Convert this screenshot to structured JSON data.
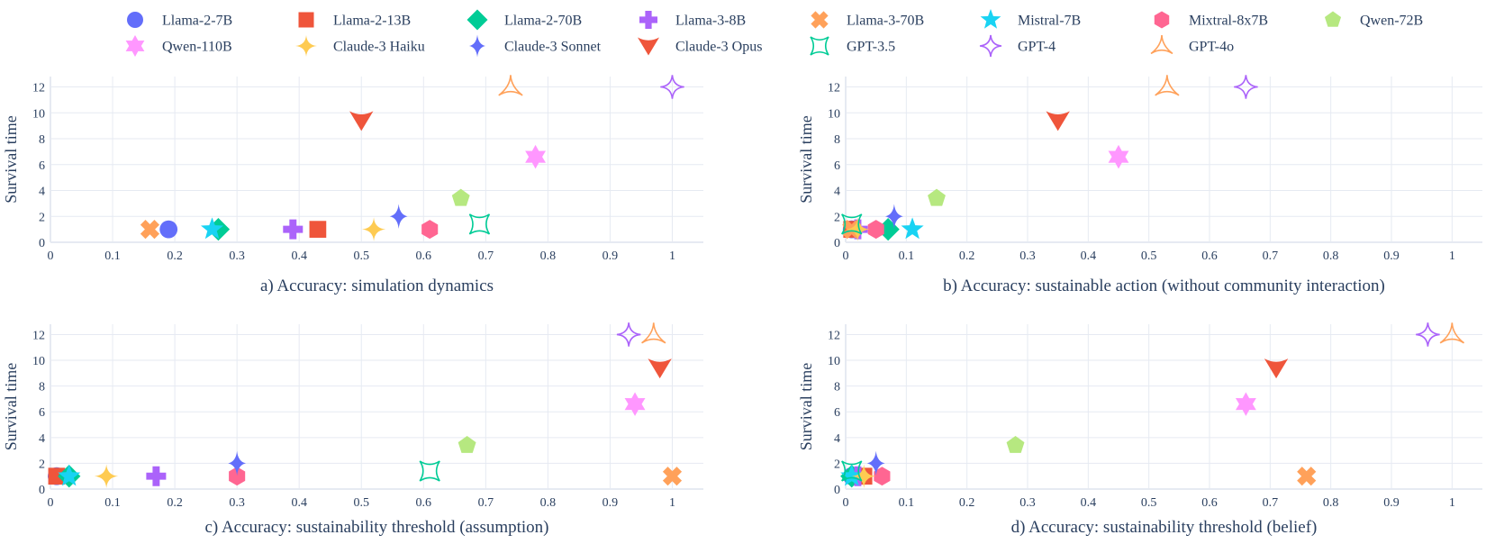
{
  "legend": [
    {
      "name": "Llama-2-7B",
      "color": "#636efa",
      "symbol": "circle"
    },
    {
      "name": "Llama-2-13B",
      "color": "#ef553b",
      "symbol": "square"
    },
    {
      "name": "Llama-2-70B",
      "color": "#00cc96",
      "symbol": "diamond"
    },
    {
      "name": "Llama-3-8B",
      "color": "#ab63fa",
      "symbol": "cross"
    },
    {
      "name": "Llama-3-70B",
      "color": "#ffa15a",
      "symbol": "x"
    },
    {
      "name": "Mistral-7B",
      "color": "#19d3f3",
      "symbol": "star"
    },
    {
      "name": "Mixtral-8x7B",
      "color": "#ff6692",
      "symbol": "hexagon"
    },
    {
      "name": "Qwen-72B",
      "color": "#b6e880",
      "symbol": "pentagon"
    },
    {
      "name": "Qwen-110B",
      "color": "#ff97ff",
      "symbol": "hexagram"
    },
    {
      "name": "Claude-3 Haiku",
      "color": "#fecb52",
      "symbol": "star-diamond"
    },
    {
      "name": "Claude-3 Sonnet",
      "color": "#636efa",
      "symbol": "diamond-tall"
    },
    {
      "name": "Claude-3 Opus",
      "color": "#ef553b",
      "symbol": "arrow-down"
    },
    {
      "name": "GPT-3.5",
      "color": "#00cc96",
      "symbol": "star-square-open"
    },
    {
      "name": "GPT-4",
      "color": "#ab63fa",
      "symbol": "star-diamond-open"
    },
    {
      "name": "GPT-4o",
      "color": "#ffa15a",
      "symbol": "star-triangle-up-open"
    }
  ],
  "chart_data": [
    {
      "type": "scatter",
      "caption": "a) Accuracy: simulation dynamics",
      "xlabel": "",
      "ylabel": "Survival time",
      "xlim": [
        0,
        1.05
      ],
      "ylim": [
        0,
        12.8
      ],
      "grid": true,
      "xticks": [
        0,
        0.1,
        0.2,
        0.3,
        0.4,
        0.5,
        0.6,
        0.7,
        0.8,
        0.9,
        1
      ],
      "xtick_labels": [
        "0",
        "0.1",
        "0.2",
        "0.3",
        "0.4",
        "0.5",
        "0.6",
        "0.7",
        "0.8",
        "0.9",
        "1"
      ],
      "yticks": [
        0,
        2,
        4,
        6,
        8,
        10,
        12
      ],
      "ytick_labels": [
        "0",
        "2",
        "4",
        "6",
        "8",
        "10",
        "12"
      ],
      "points": [
        {
          "model": "Llama-2-7B",
          "x": 0.19,
          "y": 1.0
        },
        {
          "model": "Llama-2-13B",
          "x": 0.43,
          "y": 1.0
        },
        {
          "model": "Llama-2-70B",
          "x": 0.27,
          "y": 1.0
        },
        {
          "model": "Llama-3-8B",
          "x": 0.39,
          "y": 1.0
        },
        {
          "model": "Llama-3-70B",
          "x": 0.16,
          "y": 1.0
        },
        {
          "model": "Mistral-7B",
          "x": 0.26,
          "y": 1.0
        },
        {
          "model": "Mixtral-8x7B",
          "x": 0.61,
          "y": 1.0
        },
        {
          "model": "Qwen-72B",
          "x": 0.66,
          "y": 3.4
        },
        {
          "model": "Qwen-110B",
          "x": 0.78,
          "y": 6.6
        },
        {
          "model": "Claude-3 Haiku",
          "x": 0.52,
          "y": 1.0
        },
        {
          "model": "Claude-3 Sonnet",
          "x": 0.56,
          "y": 2.0
        },
        {
          "model": "Claude-3 Opus",
          "x": 0.5,
          "y": 9.4
        },
        {
          "model": "GPT-3.5",
          "x": 0.69,
          "y": 1.4
        },
        {
          "model": "GPT-4",
          "x": 1.0,
          "y": 12.0
        },
        {
          "model": "GPT-4o",
          "x": 0.74,
          "y": 12.0
        }
      ]
    },
    {
      "type": "scatter",
      "caption": "b) Accuracy: sustainable action (without community interaction)",
      "xlabel": "",
      "ylabel": "Survival time",
      "xlim": [
        0,
        1.05
      ],
      "ylim": [
        0,
        12.8
      ],
      "grid": true,
      "xticks": [
        0,
        0.1,
        0.2,
        0.3,
        0.4,
        0.5,
        0.6,
        0.7,
        0.8,
        0.9,
        1
      ],
      "xtick_labels": [
        "0",
        "0.1",
        "0.2",
        "0.3",
        "0.4",
        "0.5",
        "0.6",
        "0.7",
        "0.8",
        "0.9",
        "1"
      ],
      "yticks": [
        0,
        2,
        4,
        6,
        8,
        10,
        12
      ],
      "ytick_labels": [
        "0",
        "2",
        "4",
        "6",
        "8",
        "10",
        "12"
      ],
      "points": [
        {
          "model": "Llama-2-7B",
          "x": 0.01,
          "y": 1.0
        },
        {
          "model": "Llama-2-13B",
          "x": 0.01,
          "y": 1.0
        },
        {
          "model": "Llama-2-70B",
          "x": 0.07,
          "y": 1.0
        },
        {
          "model": "Llama-3-8B",
          "x": 0.02,
          "y": 1.0
        },
        {
          "model": "Llama-3-70B",
          "x": 0.01,
          "y": 1.0
        },
        {
          "model": "Mistral-7B",
          "x": 0.11,
          "y": 1.0
        },
        {
          "model": "Mixtral-8x7B",
          "x": 0.05,
          "y": 1.0
        },
        {
          "model": "Qwen-72B",
          "x": 0.15,
          "y": 3.4
        },
        {
          "model": "Qwen-110B",
          "x": 0.45,
          "y": 6.6
        },
        {
          "model": "Claude-3 Haiku",
          "x": 0.02,
          "y": 1.0
        },
        {
          "model": "Claude-3 Sonnet",
          "x": 0.08,
          "y": 2.0
        },
        {
          "model": "Claude-3 Opus",
          "x": 0.35,
          "y": 9.4
        },
        {
          "model": "GPT-3.5",
          "x": 0.01,
          "y": 1.4
        },
        {
          "model": "GPT-4",
          "x": 0.66,
          "y": 12.0
        },
        {
          "model": "GPT-4o",
          "x": 0.53,
          "y": 12.0
        }
      ]
    },
    {
      "type": "scatter",
      "caption": "c) Accuracy: sustainability threshold (assumption)",
      "xlabel": "",
      "ylabel": "Survival time",
      "xlim": [
        0,
        1.05
      ],
      "ylim": [
        0,
        12.8
      ],
      "grid": true,
      "xticks": [
        0,
        0.1,
        0.2,
        0.3,
        0.4,
        0.5,
        0.6,
        0.7,
        0.8,
        0.9,
        1
      ],
      "xtick_labels": [
        "0",
        "0.1",
        "0.2",
        "0.3",
        "0.4",
        "0.5",
        "0.6",
        "0.7",
        "0.8",
        "0.9",
        "1"
      ],
      "yticks": [
        0,
        2,
        4,
        6,
        8,
        10,
        12
      ],
      "ytick_labels": [
        "0",
        "2",
        "4",
        "6",
        "8",
        "10",
        "12"
      ],
      "points": [
        {
          "model": "Llama-2-7B",
          "x": 0.01,
          "y": 1.0
        },
        {
          "model": "Llama-2-13B",
          "x": 0.01,
          "y": 1.0
        },
        {
          "model": "Llama-2-70B",
          "x": 0.03,
          "y": 1.0
        },
        {
          "model": "Llama-3-8B",
          "x": 0.17,
          "y": 1.0
        },
        {
          "model": "Llama-3-70B",
          "x": 1.0,
          "y": 1.0
        },
        {
          "model": "Mistral-7B",
          "x": 0.03,
          "y": 1.0
        },
        {
          "model": "Mixtral-8x7B",
          "x": 0.3,
          "y": 1.0
        },
        {
          "model": "Qwen-72B",
          "x": 0.67,
          "y": 3.4
        },
        {
          "model": "Qwen-110B",
          "x": 0.94,
          "y": 6.6
        },
        {
          "model": "Claude-3 Haiku",
          "x": 0.09,
          "y": 1.0
        },
        {
          "model": "Claude-3 Sonnet",
          "x": 0.3,
          "y": 2.0
        },
        {
          "model": "Claude-3 Opus",
          "x": 0.98,
          "y": 9.4
        },
        {
          "model": "GPT-3.5",
          "x": 0.61,
          "y": 1.4
        },
        {
          "model": "GPT-4",
          "x": 0.93,
          "y": 12.0
        },
        {
          "model": "GPT-4o",
          "x": 0.97,
          "y": 12.0
        }
      ]
    },
    {
      "type": "scatter",
      "caption": "d) Accuracy: sustainability threshold (belief)",
      "xlabel": "",
      "ylabel": "Survival time",
      "xlim": [
        0,
        1.05
      ],
      "ylim": [
        0,
        12.8
      ],
      "grid": true,
      "xticks": [
        0,
        0.1,
        0.2,
        0.3,
        0.4,
        0.5,
        0.6,
        0.7,
        0.8,
        0.9,
        1
      ],
      "xtick_labels": [
        "0",
        "0.1",
        "0.2",
        "0.3",
        "0.4",
        "0.5",
        "0.6",
        "0.7",
        "0.8",
        "0.9",
        "1"
      ],
      "yticks": [
        0,
        2,
        4,
        6,
        8,
        10,
        12
      ],
      "ytick_labels": [
        "0",
        "2",
        "4",
        "6",
        "8",
        "10",
        "12"
      ],
      "points": [
        {
          "model": "Llama-2-7B",
          "x": 0.01,
          "y": 1.0
        },
        {
          "model": "Llama-2-13B",
          "x": 0.03,
          "y": 1.0
        },
        {
          "model": "Llama-2-70B",
          "x": 0.01,
          "y": 1.0
        },
        {
          "model": "Llama-3-8B",
          "x": 0.02,
          "y": 1.0
        },
        {
          "model": "Llama-3-70B",
          "x": 0.76,
          "y": 1.0
        },
        {
          "model": "Mistral-7B",
          "x": 0.01,
          "y": 1.0
        },
        {
          "model": "Mixtral-8x7B",
          "x": 0.06,
          "y": 1.0
        },
        {
          "model": "Qwen-72B",
          "x": 0.28,
          "y": 3.4
        },
        {
          "model": "Qwen-110B",
          "x": 0.66,
          "y": 6.6
        },
        {
          "model": "Claude-3 Haiku",
          "x": 0.03,
          "y": 1.0
        },
        {
          "model": "Claude-3 Sonnet",
          "x": 0.05,
          "y": 2.0
        },
        {
          "model": "Claude-3 Opus",
          "x": 0.71,
          "y": 9.4
        },
        {
          "model": "GPT-3.5",
          "x": 0.01,
          "y": 1.4
        },
        {
          "model": "GPT-4",
          "x": 0.96,
          "y": 12.0
        },
        {
          "model": "GPT-4o",
          "x": 1.0,
          "y": 12.0
        }
      ]
    }
  ]
}
